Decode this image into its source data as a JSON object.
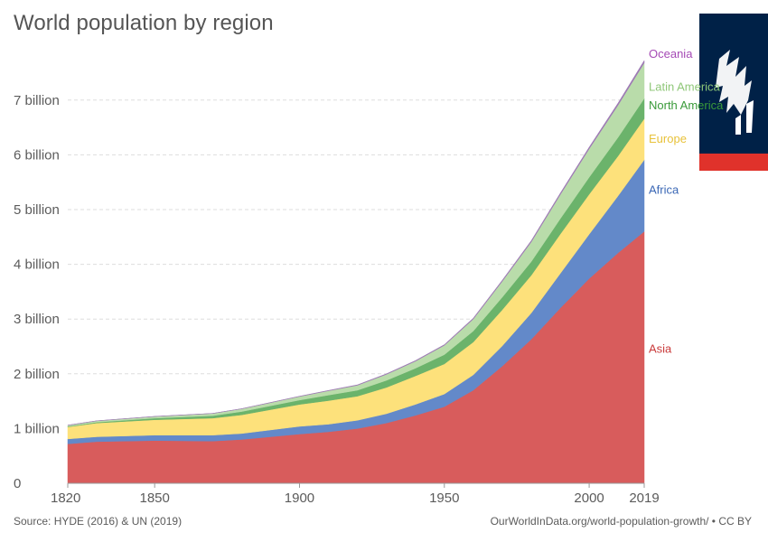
{
  "title": "World population by region",
  "source": "Source: HYDE (2016) & UN (2019)",
  "url": "OurWorldInData.org/world-population-growth/ • CC BY",
  "logo": {
    "text": "W",
    "name": "Our World in Data logo"
  },
  "chart_data": {
    "type": "area",
    "stacked": true,
    "title": "World population by region",
    "xlabel": "",
    "ylabel": "",
    "x": [
      1820,
      1830,
      1850,
      1870,
      1880,
      1900,
      1910,
      1920,
      1930,
      1940,
      1950,
      1960,
      1970,
      1980,
      1990,
      2000,
      2010,
      2019
    ],
    "xticks": [
      1820,
      1850,
      1900,
      1950,
      2000,
      2019
    ],
    "xlim": [
      1820,
      2019
    ],
    "yticks": [
      0,
      1,
      2,
      3,
      4,
      5,
      6,
      7
    ],
    "ytick_labels": [
      "0",
      "1 billion",
      "2 billion",
      "3 billion",
      "4 billion",
      "5 billion",
      "6 billion",
      "7 billion"
    ],
    "ylim": [
      0,
      7.8
    ],
    "units": "billion",
    "series": [
      {
        "name": "Asia",
        "color": "#d85c5c",
        "values": [
          0.72,
          0.76,
          0.78,
          0.77,
          0.8,
          0.9,
          0.94,
          1.0,
          1.1,
          1.24,
          1.4,
          1.7,
          2.14,
          2.63,
          3.2,
          3.74,
          4.21,
          4.6
        ]
      },
      {
        "name": "Africa",
        "color": "#6389c9",
        "values": [
          0.09,
          0.09,
          0.1,
          0.11,
          0.11,
          0.14,
          0.14,
          0.15,
          0.17,
          0.2,
          0.23,
          0.28,
          0.37,
          0.48,
          0.63,
          0.81,
          1.04,
          1.31
        ]
      },
      {
        "name": "Europe",
        "color": "#fde17b",
        "values": [
          0.22,
          0.25,
          0.28,
          0.31,
          0.34,
          0.4,
          0.43,
          0.44,
          0.48,
          0.52,
          0.55,
          0.6,
          0.66,
          0.69,
          0.72,
          0.73,
          0.73,
          0.75
        ]
      },
      {
        "name": "North America",
        "color": "#6bb36b",
        "values": [
          0.01,
          0.015,
          0.03,
          0.045,
          0.06,
          0.08,
          0.1,
          0.11,
          0.13,
          0.14,
          0.17,
          0.2,
          0.23,
          0.25,
          0.28,
          0.31,
          0.34,
          0.37
        ]
      },
      {
        "name": "Latin America",
        "color": "#b9dcaa",
        "values": [
          0.02,
          0.025,
          0.03,
          0.04,
          0.05,
          0.065,
          0.08,
          0.09,
          0.11,
          0.13,
          0.17,
          0.22,
          0.29,
          0.36,
          0.44,
          0.52,
          0.59,
          0.65
        ]
      },
      {
        "name": "Oceania",
        "color": "#9e7ab5",
        "values": [
          0.002,
          0.002,
          0.002,
          0.003,
          0.003,
          0.006,
          0.007,
          0.008,
          0.01,
          0.011,
          0.013,
          0.016,
          0.019,
          0.023,
          0.027,
          0.031,
          0.037,
          0.042
        ]
      }
    ],
    "series_labels": [
      {
        "name": "Oceania",
        "color": "#a54ab5"
      },
      {
        "name": "Latin America",
        "color": "#8fc778"
      },
      {
        "name": "North America",
        "color": "#3a9a3a"
      },
      {
        "name": "Europe",
        "color": "#e8c23a"
      },
      {
        "name": "Africa",
        "color": "#3a67b5"
      },
      {
        "name": "Asia",
        "color": "#c93a3a"
      }
    ]
  }
}
